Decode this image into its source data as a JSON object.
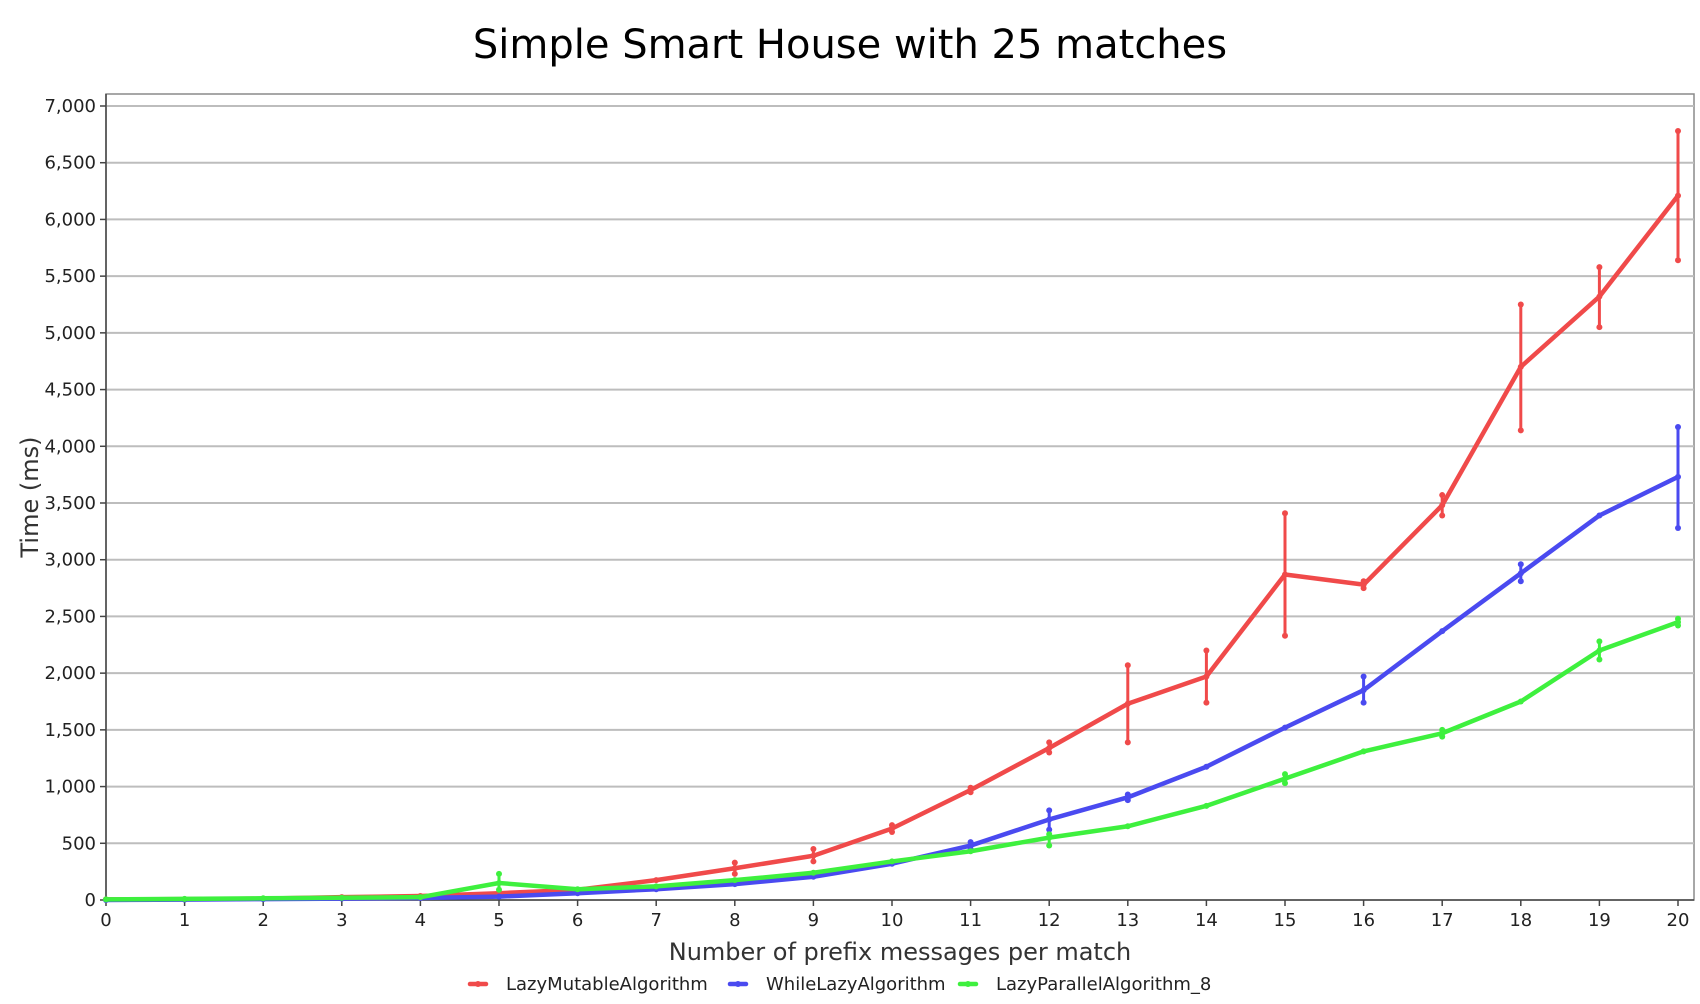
{
  "chart_data": {
    "type": "line",
    "title": "Simple Smart House with 25 matches",
    "xlabel": "Number of prefix messages per match",
    "ylabel": "Time (ms)",
    "x": [
      0,
      1,
      2,
      3,
      4,
      5,
      6,
      7,
      8,
      9,
      10,
      11,
      12,
      13,
      14,
      15,
      16,
      17,
      18,
      19,
      20
    ],
    "x_tick_labels": [
      "0",
      "1",
      "2",
      "3",
      "4",
      "5",
      "6",
      "7",
      "8",
      "9",
      "10",
      "11",
      "12",
      "13",
      "14",
      "15",
      "16",
      "17",
      "18",
      "19",
      "20"
    ],
    "xlim": [
      0,
      20
    ],
    "ylim": [
      0,
      7000
    ],
    "y_ticks": [
      0,
      500,
      1000,
      1500,
      2000,
      2500,
      3000,
      3500,
      4000,
      4500,
      5000,
      5500,
      6000,
      6500,
      7000
    ],
    "y_tick_labels": [
      "0",
      "500",
      "1,000",
      "1,500",
      "2,000",
      "2,500",
      "3,000",
      "3,500",
      "4,000",
      "4,500",
      "5,000",
      "5,500",
      "6,000",
      "6,500",
      "7,000"
    ],
    "grid": "horizontal",
    "legend_position": "bottom",
    "series": [
      {
        "name": "LazyMutableAlgorithm",
        "color": "#f04a4a",
        "values": [
          5,
          8,
          12,
          25,
          35,
          60,
          90,
          175,
          280,
          390,
          630,
          970,
          1340,
          1730,
          1970,
          2870,
          2780,
          3480,
          4700,
          5320,
          6210
        ],
        "err_low": [
          null,
          null,
          null,
          null,
          null,
          null,
          null,
          null,
          230,
          340,
          600,
          950,
          1300,
          1390,
          1740,
          2330,
          2750,
          3390,
          4140,
          5050,
          5640
        ],
        "err_high": [
          null,
          null,
          null,
          null,
          null,
          null,
          null,
          null,
          330,
          450,
          660,
          990,
          1390,
          2070,
          2200,
          3410,
          2810,
          3570,
          5250,
          5580,
          6780
        ]
      },
      {
        "name": "WhileLazyAlgorithm",
        "color": "#4a4af0",
        "values": [
          0,
          3,
          8,
          12,
          18,
          30,
          60,
          95,
          140,
          205,
          320,
          480,
          710,
          905,
          1175,
          1520,
          1850,
          2370,
          2880,
          3390,
          3730
        ],
        "err_low": [
          null,
          null,
          null,
          null,
          null,
          null,
          null,
          null,
          null,
          null,
          null,
          450,
          620,
          880,
          null,
          null,
          1740,
          null,
          2810,
          null,
          3280
        ],
        "err_high": [
          null,
          null,
          null,
          null,
          null,
          null,
          null,
          null,
          null,
          null,
          null,
          510,
          790,
          930,
          null,
          null,
          1970,
          null,
          2960,
          null,
          4170
        ]
      },
      {
        "name": "LazyParallelAlgorithm_8",
        "color": "#3ef03e",
        "values": [
          5,
          10,
          15,
          20,
          25,
          150,
          95,
          120,
          175,
          240,
          340,
          430,
          550,
          650,
          830,
          1070,
          1310,
          1470,
          1750,
          2200,
          2450
        ],
        "err_low": [
          null,
          null,
          null,
          null,
          null,
          90,
          null,
          null,
          null,
          null,
          null,
          null,
          480,
          null,
          null,
          1030,
          null,
          1440,
          null,
          2120,
          2420
        ],
        "err_high": [
          null,
          null,
          null,
          null,
          null,
          230,
          null,
          null,
          null,
          null,
          null,
          null,
          580,
          null,
          null,
          1110,
          null,
          1500,
          null,
          2280,
          2480
        ]
      }
    ]
  }
}
